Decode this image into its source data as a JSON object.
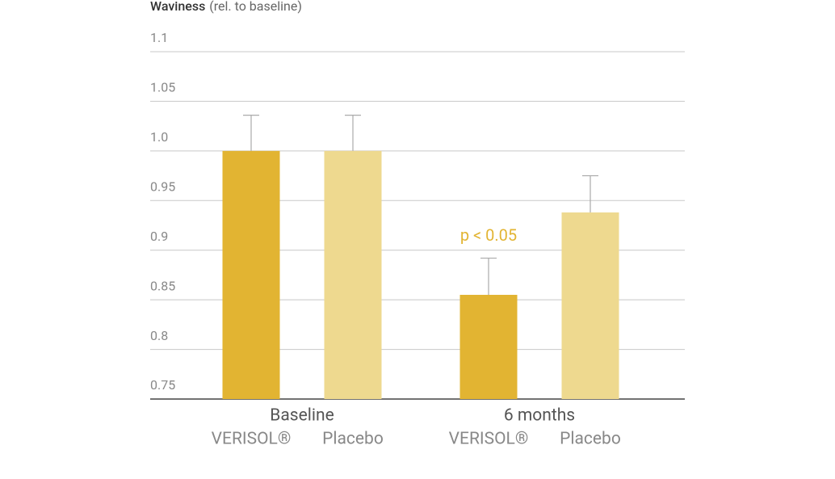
{
  "chart_data": {
    "type": "bar",
    "y_label": {
      "name": "Waviness",
      "unit": "(rel. to baseline)"
    },
    "categories": [
      "Baseline",
      "6 months"
    ],
    "series": [
      {
        "name": "VERISOL®",
        "color": "#e2b432",
        "values": [
          1.0,
          0.855
        ],
        "errors": [
          0.036,
          0.037
        ]
      },
      {
        "name": "Placebo",
        "color": "#eed98f",
        "values": [
          1.0,
          0.938
        ],
        "errors": [
          0.036,
          0.037
        ]
      }
    ],
    "annotation": "p < 0.05",
    "annotation_color": "#e2b432",
    "ylim": [
      0.75,
      1.1
    ],
    "yticks": [
      0.75,
      0.8,
      0.85,
      0.9,
      0.95,
      {
        "value": 1,
        "label": "1.0"
      },
      1.05,
      1.1
    ],
    "grid": true
  }
}
